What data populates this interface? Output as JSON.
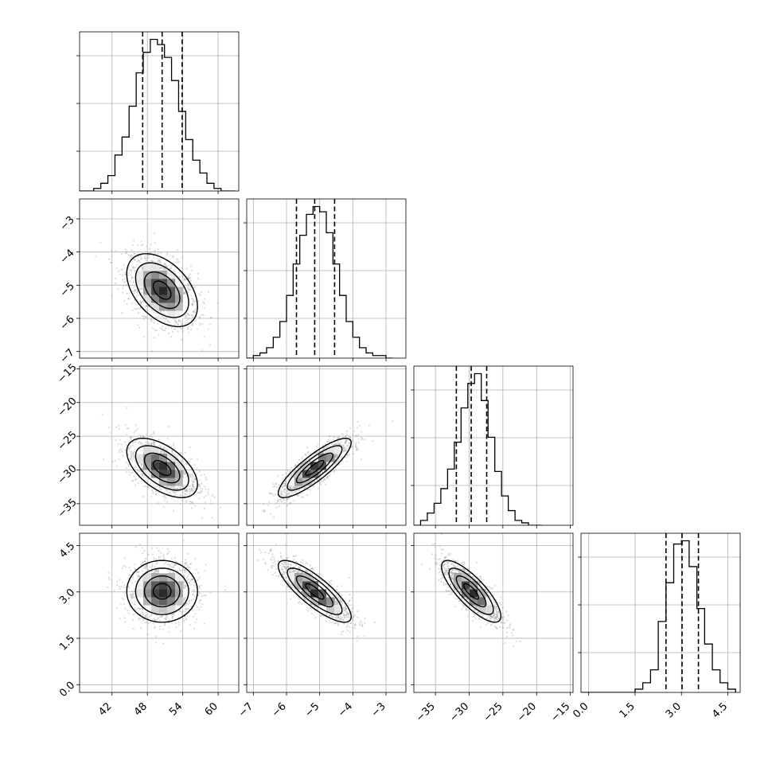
{
  "chart_data": {
    "type": "corner",
    "n_params": 4,
    "grid": true,
    "colors": {
      "line": "#000000",
      "grid": "#b0b0b0",
      "points": "#9a9a9a",
      "background": "#ffffff"
    },
    "params": [
      {
        "range": [
          36.5,
          63.5
        ],
        "ticks": [
          42,
          48,
          54,
          60
        ],
        "tick_labels": [
          "42",
          "48",
          "54",
          "60"
        ],
        "mean": 50.5,
        "sd": 3.0
      },
      {
        "range": [
          -7.2,
          -2.4
        ],
        "ticks": [
          -7,
          -6,
          -5,
          -4,
          -3
        ],
        "tick_labels": [
          "−7",
          "−6",
          "−5",
          "−4",
          "−3"
        ],
        "mean": -5.15,
        "sd": 0.55
      },
      {
        "range": [
          -38.2,
          -14.6
        ],
        "ticks": [
          -35,
          -30,
          -25,
          -20,
          -15
        ],
        "tick_labels": [
          "−35",
          "−30",
          "−25",
          "−20",
          "−15"
        ],
        "mean": -29.7,
        "sd": 2.2
      },
      {
        "range": [
          -0.25,
          4.9
        ],
        "ticks": [
          0.0,
          1.5,
          3.0,
          4.5
        ],
        "tick_labels": [
          "0.0",
          "1.5",
          "3.0",
          "4.5"
        ],
        "mean": 3.02,
        "sd": 0.5
      }
    ],
    "histograms": [
      {
        "param": 0,
        "bin_edges": [
          36.5,
          37.7,
          38.9,
          40.1,
          41.3,
          42.5,
          43.7,
          44.9,
          46.1,
          47.3,
          48.5,
          49.7,
          50.9,
          52.1,
          53.3,
          54.5,
          55.7,
          56.9,
          58.1,
          59.3,
          60.5,
          61.7,
          62.9
        ],
        "counts": [
          0,
          0,
          1,
          3,
          6,
          14,
          21,
          33,
          46,
          54,
          59,
          57,
          52,
          43,
          31,
          20,
          12,
          7,
          3,
          1,
          0,
          0
        ],
        "quantiles": [
          47.2,
          50.5,
          53.9
        ]
      },
      {
        "param": 1,
        "bin_edges": [
          -7.2,
          -7.0,
          -6.8,
          -6.6,
          -6.4,
          -6.2,
          -6.0,
          -5.8,
          -5.6,
          -5.4,
          -5.2,
          -5.0,
          -4.8,
          -4.6,
          -4.4,
          -4.2,
          -4.0,
          -3.8,
          -3.6,
          -3.4,
          -3.2,
          -3.0,
          -2.8
        ],
        "counts": [
          0,
          1,
          2,
          4,
          8,
          14,
          24,
          36,
          47,
          55,
          58,
          56,
          48,
          36,
          24,
          14,
          8,
          4,
          2,
          1,
          1,
          0
        ],
        "quantiles": [
          -5.7,
          -5.15,
          -4.55
        ]
      },
      {
        "param": 2,
        "bin_edges": [
          -38.2,
          -37.2,
          -36.2,
          -35.2,
          -34.2,
          -33.2,
          -32.2,
          -31.2,
          -30.2,
          -29.2,
          -28.2,
          -27.2,
          -26.2,
          -25.2,
          -24.2,
          -23.2,
          -22.2,
          -21.2,
          -20.2,
          -19.2
        ],
        "counts": [
          0,
          2,
          5,
          9,
          15,
          23,
          34,
          48,
          58,
          62,
          51,
          36,
          22,
          12,
          6,
          2,
          1,
          0,
          0
        ],
        "quantiles": [
          -31.9,
          -29.7,
          -27.4
        ]
      },
      {
        "param": 3,
        "bin_edges": [
          -0.25,
          0.0,
          0.25,
          0.5,
          0.75,
          1.0,
          1.25,
          1.5,
          1.75,
          2.0,
          2.25,
          2.5,
          2.75,
          3.0,
          3.25,
          3.5,
          3.75,
          4.0,
          4.25,
          4.5,
          4.75
        ],
        "counts": [
          0,
          0,
          0,
          0,
          0,
          0,
          0,
          1,
          3,
          7,
          22,
          34,
          46,
          47,
          39,
          26,
          15,
          7,
          3,
          1
        ],
        "quantiles": [
          2.5,
          3.02,
          3.55
        ]
      }
    ],
    "pairs": [
      {
        "x_param": 0,
        "y_param": 1,
        "rho": -0.45,
        "center": [
          50.5,
          -5.15
        ]
      },
      {
        "x_param": 0,
        "y_param": 2,
        "rho": -0.55,
        "center": [
          50.5,
          -29.7
        ]
      },
      {
        "x_param": 1,
        "y_param": 2,
        "rho": 0.85,
        "center": [
          -5.15,
          -29.7
        ]
      },
      {
        "x_param": 0,
        "y_param": 3,
        "rho": 0.0,
        "center": [
          50.5,
          3.02
        ]
      },
      {
        "x_param": 1,
        "y_param": 3,
        "rho": -0.82,
        "center": [
          -5.15,
          3.02
        ]
      },
      {
        "x_param": 2,
        "y_param": 3,
        "rho": -0.8,
        "center": [
          -29.7,
          3.02
        ]
      }
    ],
    "contour_levels_sigma": [
      0.5,
      1.0,
      1.5,
      2.0
    ]
  }
}
